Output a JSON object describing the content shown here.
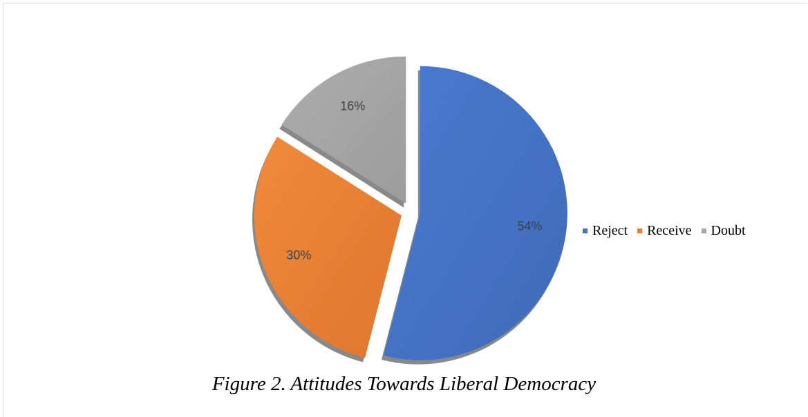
{
  "chart_data": {
    "type": "pie",
    "title": "",
    "slices": [
      {
        "name": "Reject",
        "value": 54,
        "label": "54%",
        "color": "#4472c4"
      },
      {
        "name": "Receive",
        "value": 30,
        "label": "30%",
        "color": "#ed7d31"
      },
      {
        "name": "Doubt",
        "value": 16,
        "label": "16%",
        "color": "#a5a5a5"
      }
    ],
    "exploded": true,
    "style": "3d-shadow",
    "legend": {
      "position": "right",
      "entries": [
        "Reject",
        "Receive",
        "Doubt"
      ]
    }
  },
  "caption": "Figure 2. Attitudes Towards Liberal Democracy"
}
